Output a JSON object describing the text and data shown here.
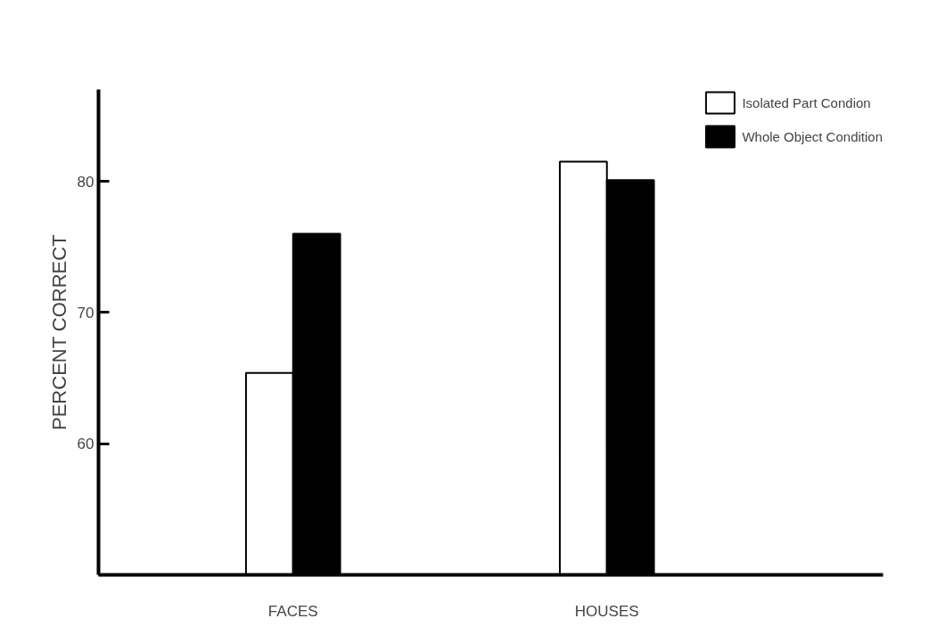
{
  "chart_data": {
    "type": "bar",
    "ylabel": "PERCENT CORRECT",
    "categories": [
      "FACES",
      "HOUSES"
    ],
    "series": [
      {
        "name": "Isolated Part Condion",
        "color": "#ffffff",
        "values": [
          65.4,
          81.5
        ]
      },
      {
        "name": "Whole Object Condition",
        "color": "#000000",
        "values": [
          76.0,
          80.1
        ]
      }
    ],
    "ylim": [
      50,
      87
    ],
    "yticks": [
      {
        "value": 50,
        "label": null
      },
      60,
      70,
      80
    ],
    "grid": false,
    "legend": "top right"
  }
}
